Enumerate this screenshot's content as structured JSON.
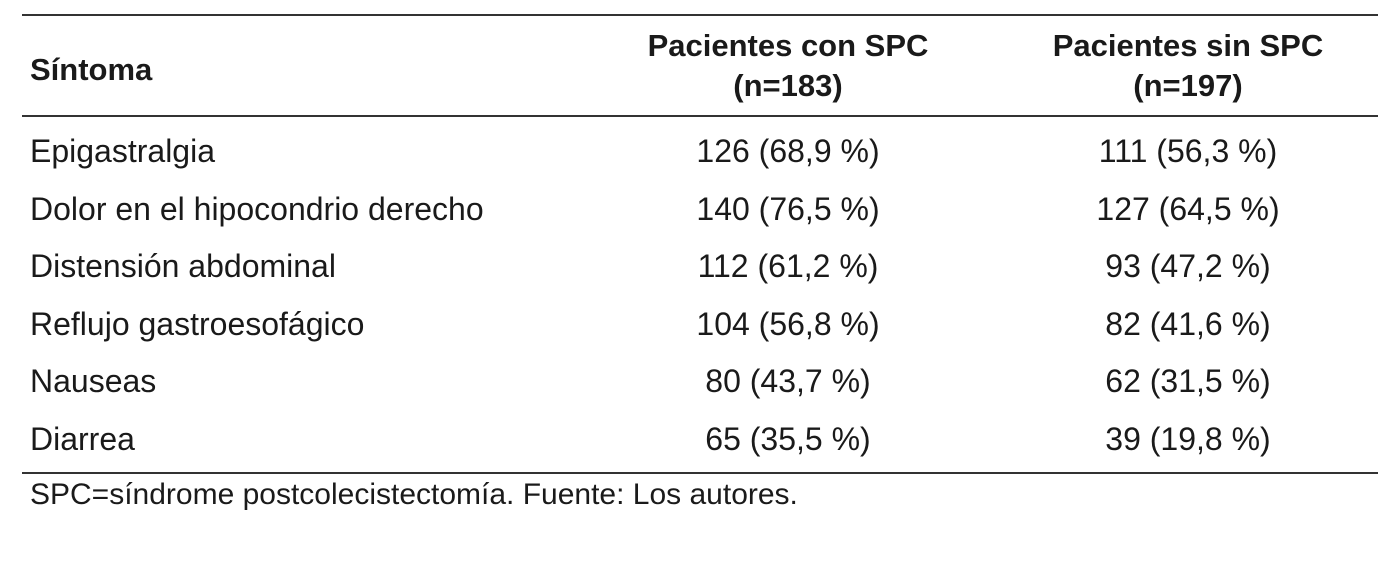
{
  "table": {
    "headers": {
      "symptom": "Síntoma",
      "with_spc_line1": "Pacientes con SPC",
      "with_spc_line2": "(n=183)",
      "without_spc_line1": "Pacientes sin SPC",
      "without_spc_line2": "(n=197)"
    },
    "rows": [
      {
        "symptom": "Epigastralgia",
        "with_spc": "126 (68,9 %)",
        "without_spc": "111 (56,3 %)"
      },
      {
        "symptom": "Dolor en el hipocondrio derecho",
        "with_spc": "140 (76,5 %)",
        "without_spc": "127 (64,5 %)"
      },
      {
        "symptom": "Distensión abdominal",
        "with_spc": "112 (61,2 %)",
        "without_spc": "93 (47,2 %)"
      },
      {
        "symptom": "Reflujo gastroesofágico",
        "with_spc": "104 (56,8 %)",
        "without_spc": "82 (41,6 %)"
      },
      {
        "symptom": "Nauseas",
        "with_spc": "80 (43,7 %)",
        "without_spc": "62 (31,5 %)"
      },
      {
        "symptom": "Diarrea",
        "with_spc": "65 (35,5 %)",
        "without_spc": "39 (19,8 %)"
      }
    ]
  },
  "footnote": "SPC=síndrome postcolecistectomía. Fuente: Los autores."
}
